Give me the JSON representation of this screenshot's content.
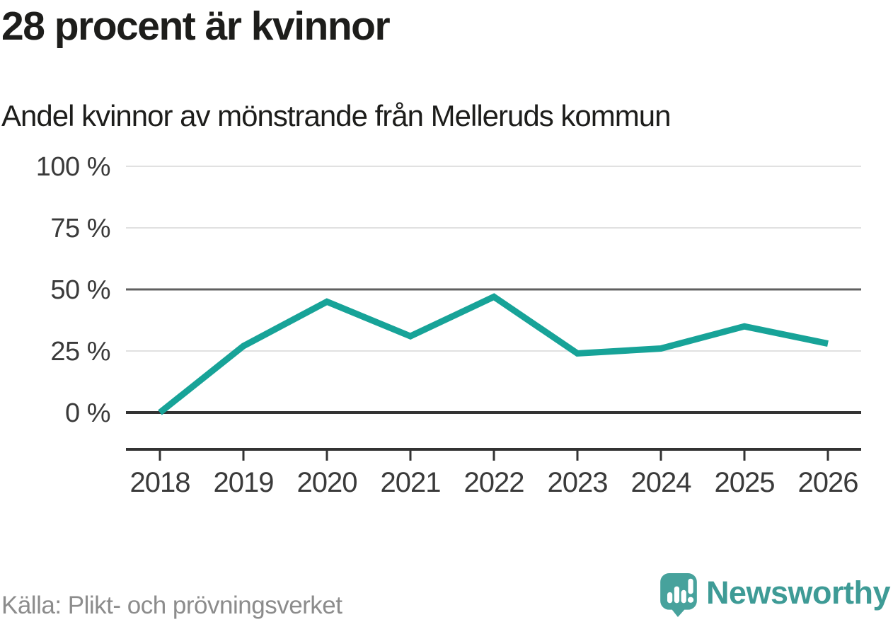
{
  "chart_data": {
    "type": "line",
    "title": "28 procent är kvinnor",
    "subtitle": "Andel kvinnor av mönstrande från Melleruds kommun",
    "x": [
      2018,
      2019,
      2020,
      2021,
      2022,
      2023,
      2024,
      2025,
      2026
    ],
    "series": [
      {
        "name": "andel-kvinnor",
        "values": [
          0,
          27,
          45,
          31,
          47,
          24,
          26,
          35,
          28
        ]
      }
    ],
    "unit": "%",
    "yticks": [
      0,
      25,
      50,
      75,
      100
    ],
    "ytick_labels": [
      "0 %",
      "25 %",
      "50 %",
      "75 %",
      "100 %"
    ],
    "ylim": [
      0,
      100
    ],
    "grid": "horizontal",
    "legend": "none"
  },
  "footer": {
    "source": "Källa: Plikt- och prövningsverket",
    "logo_text": "Newsworthy"
  },
  "colors": {
    "line": "#17a398",
    "grid_light": "#e1e1e1",
    "grid_strong": "#606060",
    "axis": "#333333",
    "tick_label": "#3a3a3a",
    "title_text": "#1d1d1b",
    "source_text": "#8c8c8c",
    "logo_teal": "#3e9b96",
    "logo_icon_teal": "#47a29c"
  }
}
